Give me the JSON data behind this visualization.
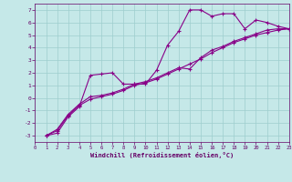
{
  "bg_color": "#c5e8e8",
  "grid_color": "#9ecece",
  "line_color": "#880088",
  "xlabel": "Windchill (Refroidissement éolien,°C)",
  "xlim": [
    0,
    23
  ],
  "ylim": [
    -3.5,
    7.5
  ],
  "yticks": [
    -3,
    -2,
    -1,
    0,
    1,
    2,
    3,
    4,
    5,
    6,
    7
  ],
  "xticks": [
    0,
    1,
    2,
    3,
    4,
    5,
    6,
    7,
    8,
    9,
    10,
    11,
    12,
    13,
    14,
    15,
    16,
    17,
    18,
    19,
    20,
    21,
    22,
    23
  ],
  "line1_x": [
    1,
    2,
    3,
    4,
    5,
    6,
    7,
    8,
    9,
    10,
    11,
    12,
    13,
    14,
    15,
    16,
    17,
    18,
    19,
    20,
    21,
    22,
    23
  ],
  "line1_y": [
    -3.0,
    -2.8,
    -1.5,
    -0.7,
    1.8,
    1.9,
    2.0,
    1.1,
    1.1,
    1.1,
    2.2,
    4.2,
    5.3,
    7.0,
    7.0,
    6.5,
    6.7,
    6.7,
    5.5,
    6.2,
    6.0,
    5.7,
    5.5
  ],
  "line2_x": [
    1,
    2,
    3,
    4,
    5,
    6,
    7,
    8,
    9,
    10,
    11,
    12,
    13,
    14,
    15,
    16,
    17,
    18,
    19,
    20,
    21,
    22,
    23
  ],
  "line2_y": [
    -3.0,
    -2.5,
    -1.3,
    -0.5,
    0.1,
    0.2,
    0.4,
    0.7,
    1.1,
    1.3,
    1.6,
    2.0,
    2.4,
    2.3,
    3.2,
    3.8,
    4.1,
    4.5,
    4.8,
    5.1,
    5.4,
    5.5,
    5.5
  ],
  "line3_x": [
    1,
    2,
    3,
    4,
    5,
    6,
    7,
    8,
    9,
    10,
    11,
    12,
    13,
    14,
    15,
    16,
    17,
    18,
    19,
    20,
    21,
    22,
    23
  ],
  "line3_y": [
    -3.0,
    -2.6,
    -1.4,
    -0.6,
    -0.1,
    0.1,
    0.3,
    0.6,
    1.0,
    1.2,
    1.5,
    1.9,
    2.3,
    2.7,
    3.1,
    3.6,
    4.0,
    4.4,
    4.7,
    5.0,
    5.2,
    5.4,
    5.5
  ]
}
